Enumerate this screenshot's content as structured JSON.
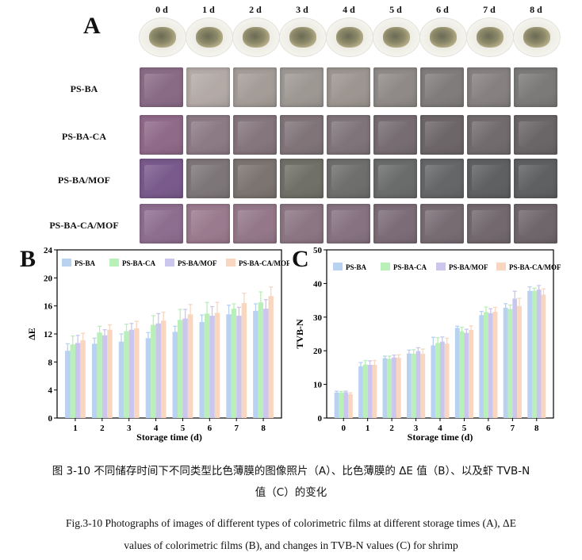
{
  "panel_a": {
    "letter": "A",
    "days": [
      "0 d",
      "1 d",
      "2 d",
      "3 d",
      "4 d",
      "5 d",
      "6 d",
      "7 d",
      "8 d"
    ],
    "rows": [
      {
        "label": "PS-BA",
        "colors": [
          "#8a6b86",
          "#b3aaa6",
          "#a49c97",
          "#9e9893",
          "#9c9590",
          "#8f8a88",
          "#807c7c",
          "#868080",
          "#7c7979"
        ]
      },
      {
        "label": "PS-BA-CA",
        "colors": [
          "#8f6a89",
          "#8c7a84",
          "#85757d",
          "#807479",
          "#7f7479",
          "#766c71",
          "#6d6669",
          "#716b6d",
          "#6a6567"
        ]
      },
      {
        "label": "PS-BA/MOF",
        "colors": [
          "#7a5a8c",
          "#7d7678",
          "#7b7470",
          "#707068",
          "#6e6e6c",
          "#6a6b6b",
          "#656668",
          "#5f6062",
          "#5e6062"
        ]
      },
      {
        "label": "PS-BA-CA/MOF",
        "colors": [
          "#8e6e90",
          "#9a7a8e",
          "#94788a",
          "#8c7684",
          "#867280",
          "#7c6c77",
          "#786c73",
          "#72686e",
          "#6f666b"
        ]
      }
    ]
  },
  "chart_data": [
    {
      "panel": "B",
      "type": "bar",
      "title": "",
      "xlabel": "Storage time (d)",
      "ylabel": "ΔE",
      "categories": [
        "1",
        "2",
        "3",
        "4",
        "5",
        "6",
        "7",
        "8"
      ],
      "ylim": [
        0,
        24
      ],
      "yticks": [
        "0",
        "4",
        "8",
        "12",
        "16",
        "20",
        "24"
      ],
      "series": [
        {
          "name": "PS-BA",
          "color": "#b9d2f1",
          "values": [
            9.6,
            10.6,
            10.9,
            11.4,
            12.3,
            13.7,
            14.8,
            15.3
          ],
          "errors": [
            1.0,
            0.8,
            1.1,
            0.8,
            0.8,
            1.0,
            1.3,
            1.0
          ]
        },
        {
          "name": "PS-BA-CA",
          "color": "#b9efb8",
          "values": [
            10.5,
            12.2,
            12.4,
            13.3,
            14.0,
            14.9,
            15.6,
            16.5
          ],
          "errors": [
            1.2,
            0.9,
            1.0,
            1.3,
            1.5,
            1.6,
            0.7,
            1.5
          ]
        },
        {
          "name": "PS-BA/MOF",
          "color": "#cbc6ee",
          "values": [
            10.7,
            11.8,
            12.6,
            13.5,
            14.2,
            14.6,
            14.6,
            15.6
          ],
          "errors": [
            1.1,
            0.8,
            0.9,
            1.4,
            1.3,
            1.3,
            1.2,
            1.3
          ]
        },
        {
          "name": "PS-BA-CA/MOF",
          "color": "#f8d6bf",
          "values": [
            11.1,
            12.6,
            12.8,
            13.9,
            14.8,
            15.0,
            16.4,
            17.4
          ],
          "errors": [
            1.0,
            0.7,
            1.0,
            1.2,
            1.4,
            1.5,
            1.4,
            1.3
          ]
        }
      ]
    },
    {
      "panel": "C",
      "type": "bar",
      "title": "",
      "xlabel": "Storage time (d)",
      "ylabel": "TVB-N",
      "categories": [
        "0",
        "1",
        "2",
        "3",
        "4",
        "5",
        "6",
        "7",
        "8"
      ],
      "ylim": [
        0,
        50
      ],
      "yticks": [
        "0",
        "10",
        "20",
        "30",
        "40",
        "50"
      ],
      "series": [
        {
          "name": "PS-BA",
          "color": "#b9d2f1",
          "values": [
            7.6,
            15.4,
            17.8,
            19.2,
            21.6,
            26.8,
            30.6,
            32.8,
            37.8
          ],
          "errors": [
            0.4,
            1.1,
            0.6,
            1.0,
            2.4,
            0.5,
            1.1,
            1.2,
            1.2
          ]
        },
        {
          "name": "PS-BA-CA",
          "color": "#b9efb8",
          "values": [
            7.5,
            15.9,
            17.6,
            19.1,
            22.3,
            25.8,
            31.5,
            32.4,
            37.8
          ],
          "errors": [
            0.4,
            1.2,
            0.8,
            1.2,
            1.6,
            1.2,
            1.5,
            1.2,
            0.8
          ]
        },
        {
          "name": "PS-BA/MOF",
          "color": "#cbc6ee",
          "values": [
            7.7,
            15.8,
            18.0,
            19.9,
            22.7,
            25.3,
            31.2,
            35.5,
            38.2
          ],
          "errors": [
            0.3,
            1.2,
            0.7,
            1.0,
            1.4,
            1.1,
            1.3,
            2.2,
            1.2
          ]
        },
        {
          "name": "PS-BA-CA/MOF",
          "color": "#f8d6bf",
          "values": [
            7.1,
            15.8,
            17.9,
            19.1,
            22.1,
            26.2,
            31.6,
            33.3,
            36.7
          ],
          "errors": [
            0.4,
            1.3,
            0.9,
            1.4,
            1.6,
            1.2,
            1.3,
            2.3,
            1.7
          ]
        }
      ]
    }
  ],
  "captions": {
    "cn_line1": "图 3-10 不同储存时间下不同类型比色薄膜的图像照片（A）、比色薄膜的 ΔE 值（B）、以及虾 TVB-N",
    "cn_line2": "值（C）的变化",
    "en_line1": "Fig.3-10 Photographs of images of different types of colorimetric films at different storage times (A), ΔE",
    "en_line2": "values of colorimetric films (B), and changes in TVB-N values (C) for shrimp"
  }
}
